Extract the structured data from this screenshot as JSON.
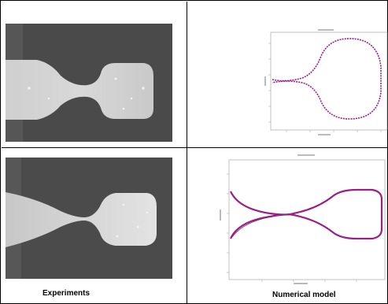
{
  "captions": {
    "experiments": "Experiments",
    "numerical_model": "Numerical model"
  },
  "colors": {
    "frame": "#000000",
    "photo_background": "#4b4b4b",
    "photo_neck": "#c8c8c8",
    "model_curve": "#9b1f86"
  },
  "panels": {
    "experiment_top": "high-speed photograph of liquid bridge, early pinch-off",
    "experiment_bottom": "high-speed photograph of liquid bridge, late pinch-off",
    "model_top": "simulated interface profile, early stage",
    "model_bottom": "simulated interface profile, late stage"
  }
}
